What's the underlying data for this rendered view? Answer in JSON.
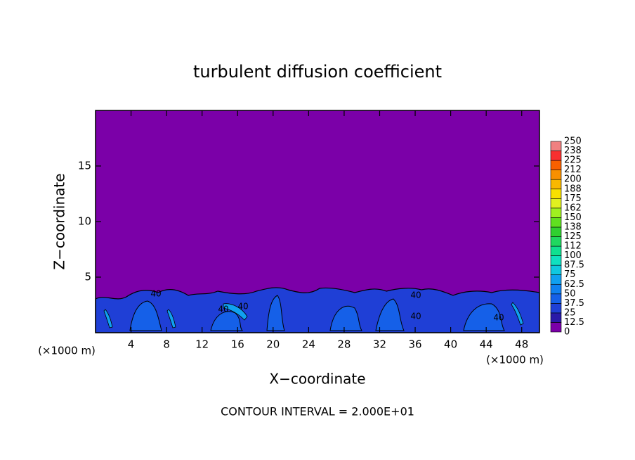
{
  "chart_data": {
    "type": "contour",
    "title": "turbulent diffusion coefficient",
    "x_label": "X−coordinate",
    "y_label": "Z−coordinate",
    "x_unit": "(×1000 m)",
    "x_unit_right": "(×1000 m)",
    "footer": "CONTOUR INTERVAL = 2.000E+01",
    "xlim": [
      0,
      50
    ],
    "ylim": [
      0,
      20
    ],
    "xticks": [
      4,
      8,
      12,
      16,
      20,
      24,
      28,
      32,
      36,
      40,
      44,
      48
    ],
    "yticks": [
      5,
      10,
      15
    ],
    "background_color": "#7b00a8",
    "contour_labels": [
      "40",
      "40",
      "40",
      "40",
      "40",
      "40"
    ],
    "colorbar": {
      "levels": [
        0,
        12.5,
        25,
        37.5,
        50,
        62.5,
        75,
        87.5,
        100,
        112,
        125,
        138,
        150,
        162,
        175,
        188,
        200,
        212,
        225,
        238,
        250
      ],
      "colors": [
        "#7b00a8",
        "#2a1aa8",
        "#1f3fd6",
        "#1560e8",
        "#0f80f0",
        "#10a0f0",
        "#10c8e0",
        "#10e0c0",
        "#10e090",
        "#20d860",
        "#30d030",
        "#60e020",
        "#a0f020",
        "#e0f020",
        "#f8e000",
        "#f8b800",
        "#f89000",
        "#f86000",
        "#f83030",
        "#f08080"
      ]
    }
  }
}
